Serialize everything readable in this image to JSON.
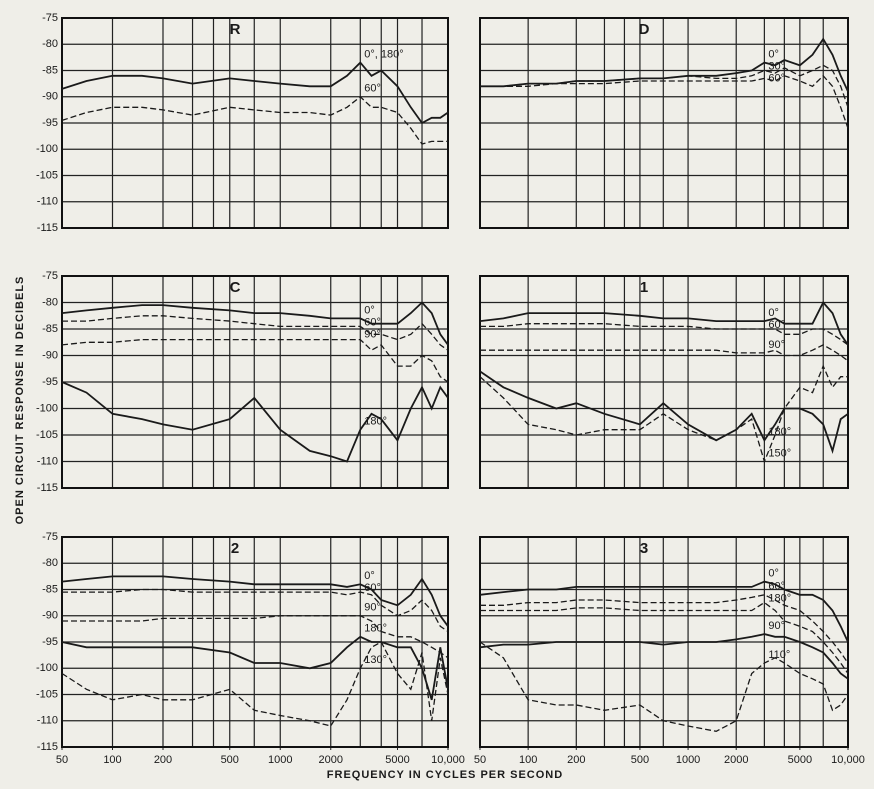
{
  "ylabel": "OPEN CIRCUIT RESPONSE IN DECIBELS",
  "xlabel": "FREQUENCY IN CYCLES PER SECOND",
  "chart_data": [
    {
      "type": "line",
      "title": "R",
      "xscale": "log",
      "xlim": [
        50,
        10000
      ],
      "ylim": [
        -115,
        -75
      ],
      "x": [
        50,
        70,
        100,
        150,
        200,
        300,
        500,
        700,
        1000,
        1500,
        2000,
        2500,
        3000,
        3500,
        4000,
        5000,
        6000,
        7000,
        8000,
        9000,
        10000
      ],
      "xgrid": [
        50,
        100,
        200,
        300,
        400,
        500,
        700,
        1000,
        2000,
        3000,
        4000,
        5000,
        7000,
        10000
      ],
      "yticks": [
        -75,
        -80,
        -85,
        -90,
        -95,
        -100,
        -105,
        -110,
        -115
      ],
      "series": [
        {
          "name": "0°, 180°",
          "color": "#1a1a1a",
          "dash": false,
          "values": [
            -88.5,
            -87,
            -86,
            -86,
            -86.5,
            -87.5,
            -86.5,
            -87,
            -87.5,
            -88,
            -88,
            -86,
            -83.5,
            -86,
            -85,
            -88,
            -92,
            -95,
            -94,
            -94,
            -93
          ]
        },
        {
          "name": "60°",
          "color": "#1a1a1a",
          "dash": true,
          "values": [
            -94.5,
            -93,
            -92,
            -92,
            -92.5,
            -93.5,
            -92,
            -92.5,
            -93,
            -93,
            -93.5,
            -92,
            -90,
            -92,
            -92,
            -93,
            -96,
            -99,
            -98.5,
            -98.5,
            -98.5
          ]
        }
      ]
    },
    {
      "type": "line",
      "title": "D",
      "xscale": "log",
      "xlim": [
        50,
        10000
      ],
      "ylim": [
        -115,
        -75
      ],
      "x": [
        50,
        70,
        100,
        150,
        200,
        300,
        500,
        700,
        1000,
        1500,
        2000,
        2500,
        3000,
        3500,
        4000,
        5000,
        6000,
        7000,
        8000,
        9000,
        10000
      ],
      "xgrid": [
        50,
        100,
        200,
        300,
        400,
        500,
        700,
        1000,
        2000,
        3000,
        4000,
        5000,
        7000,
        10000
      ],
      "ygrid": [
        -75,
        -80,
        -85,
        -90,
        -95,
        -100,
        -105,
        -110,
        -115
      ],
      "series": [
        {
          "name": "0°",
          "color": "#1a1a1a",
          "dash": false,
          "values": [
            -88,
            -88,
            -87.5,
            -87.5,
            -87,
            -87,
            -86.5,
            -86.5,
            -86,
            -86,
            -85.5,
            -85,
            -83.5,
            -84,
            -83,
            -84,
            -82,
            -79,
            -82,
            -86,
            -89
          ]
        },
        {
          "name": "30°",
          "color": "#1a1a1a",
          "dash": true,
          "values": [
            -88,
            -88,
            -87.5,
            -87.5,
            -87,
            -87,
            -86.5,
            -86.5,
            -86,
            -86.5,
            -86.5,
            -86,
            -85,
            -85.5,
            -84.5,
            -86,
            -85,
            -84,
            -85,
            -88,
            -92
          ]
        },
        {
          "name": "60°",
          "color": "#1a1a1a",
          "dash": true,
          "values": [
            -88,
            -88,
            -88,
            -87.5,
            -87.5,
            -87.5,
            -87,
            -87,
            -87,
            -87,
            -87,
            -87,
            -86.5,
            -87,
            -86,
            -87,
            -88,
            -86,
            -88,
            -92,
            -96
          ]
        }
      ]
    },
    {
      "type": "line",
      "title": "C",
      "xscale": "log",
      "xlim": [
        50,
        10000
      ],
      "ylim": [
        -115,
        -75
      ],
      "x": [
        50,
        70,
        100,
        150,
        200,
        300,
        500,
        700,
        1000,
        1500,
        2000,
        2500,
        3000,
        3500,
        4000,
        5000,
        6000,
        7000,
        8000,
        9000,
        10000
      ],
      "xgrid": [
        50,
        100,
        200,
        300,
        400,
        500,
        700,
        1000,
        2000,
        3000,
        4000,
        5000,
        7000,
        10000
      ],
      "yticks": [
        -75,
        -80,
        -85,
        -90,
        -95,
        -100,
        -105,
        -110,
        -115
      ],
      "series": [
        {
          "name": "0°",
          "color": "#1a1a1a",
          "dash": false,
          "values": [
            -82,
            -81.5,
            -81,
            -80.5,
            -80.5,
            -81,
            -81.5,
            -82,
            -82,
            -82.5,
            -83,
            -83,
            -83,
            -84,
            -84,
            -84,
            -82,
            -80,
            -82,
            -86,
            -88
          ]
        },
        {
          "name": "60°",
          "color": "#1a1a1a",
          "dash": true,
          "values": [
            -83.5,
            -83.5,
            -83,
            -82.5,
            -82.5,
            -83,
            -83.5,
            -84,
            -84.5,
            -84.5,
            -84.5,
            -84.5,
            -84.5,
            -86,
            -86,
            -87,
            -86,
            -84,
            -86,
            -88,
            -89
          ]
        },
        {
          "name": "90°",
          "color": "#1a1a1a",
          "dash": true,
          "values": [
            -88,
            -87.5,
            -87.5,
            -87,
            -87,
            -87,
            -87,
            -87,
            -87,
            -87,
            -87,
            -87,
            -87,
            -89,
            -88,
            -92,
            -92,
            -90,
            -91,
            -94,
            -95
          ]
        },
        {
          "name": "180°",
          "color": "#1a1a1a",
          "dash": false,
          "values": [
            -95,
            -97,
            -101,
            -102,
            -103,
            -104,
            -102,
            -98,
            -104,
            -108,
            -109,
            -110,
            -104,
            -101,
            -102,
            -106,
            -100,
            -96,
            -100,
            -96,
            -98
          ]
        }
      ]
    },
    {
      "type": "line",
      "title": "1",
      "xscale": "log",
      "xlim": [
        50,
        10000
      ],
      "ylim": [
        -115,
        -75
      ],
      "x": [
        50,
        70,
        100,
        150,
        200,
        300,
        500,
        700,
        1000,
        1500,
        2000,
        2500,
        3000,
        3500,
        4000,
        5000,
        6000,
        7000,
        8000,
        9000,
        10000
      ],
      "xgrid": [
        50,
        100,
        200,
        300,
        400,
        500,
        700,
        1000,
        2000,
        3000,
        4000,
        5000,
        7000,
        10000
      ],
      "ygrid": [
        -75,
        -80,
        -85,
        -90,
        -95,
        -100,
        -105,
        -110,
        -115
      ],
      "series": [
        {
          "name": "0°",
          "color": "#1a1a1a",
          "dash": false,
          "values": [
            -83.5,
            -83,
            -82,
            -82,
            -82,
            -82,
            -82.5,
            -83,
            -83,
            -83.5,
            -83.5,
            -83.5,
            -83.5,
            -83,
            -84,
            -84,
            -84,
            -80,
            -82,
            -86,
            -88
          ]
        },
        {
          "name": "60°",
          "color": "#1a1a1a",
          "dash": true,
          "values": [
            -84.5,
            -84.5,
            -84,
            -84,
            -84,
            -84,
            -84.5,
            -84.5,
            -84.5,
            -85,
            -85,
            -85,
            -85,
            -85,
            -86,
            -86,
            -85,
            -85,
            -86,
            -87,
            -88
          ]
        },
        {
          "name": "90°",
          "color": "#1a1a1a",
          "dash": true,
          "values": [
            -89,
            -89,
            -89,
            -89,
            -89,
            -89,
            -89,
            -89,
            -89,
            -89,
            -89.5,
            -89.5,
            -89.5,
            -89,
            -90,
            -90,
            -89,
            -88,
            -89,
            -90,
            -91
          ]
        },
        {
          "name": "150°",
          "color": "#1a1a1a",
          "dash": true,
          "values": [
            -94,
            -98,
            -103,
            -104,
            -105,
            -104,
            -104,
            -101,
            -104,
            -106,
            -104,
            -102,
            -110,
            -105,
            -100,
            -96,
            -97,
            -92,
            -96,
            -94,
            -94
          ]
        },
        {
          "name": "180°",
          "color": "#1a1a1a",
          "dash": false,
          "values": [
            -93,
            -96,
            -98,
            -100,
            -99,
            -101,
            -103,
            -99,
            -103,
            -106,
            -104,
            -101,
            -106,
            -103,
            -100,
            -100,
            -101,
            -103,
            -108,
            -102,
            -101
          ]
        }
      ]
    },
    {
      "type": "line",
      "title": "2",
      "xscale": "log",
      "xlim": [
        50,
        10000
      ],
      "ylim": [
        -115,
        -75
      ],
      "x": [
        50,
        70,
        100,
        150,
        200,
        300,
        500,
        700,
        1000,
        1500,
        2000,
        2500,
        3000,
        3500,
        4000,
        5000,
        6000,
        7000,
        8000,
        9000,
        10000
      ],
      "xgrid": [
        50,
        100,
        200,
        300,
        400,
        500,
        700,
        1000,
        2000,
        3000,
        4000,
        5000,
        7000,
        10000
      ],
      "xticks": [
        50,
        100,
        200,
        500,
        1000,
        2000,
        5000,
        {
          "value": 10000,
          "label": "10,000"
        }
      ],
      "yticks": [
        -75,
        -80,
        -85,
        -90,
        -95,
        -100,
        -105,
        -110,
        -115
      ],
      "series": [
        {
          "name": "0°",
          "color": "#1a1a1a",
          "dash": false,
          "values": [
            -83.5,
            -83,
            -82.5,
            -82.5,
            -82.5,
            -83,
            -83.5,
            -84,
            -84,
            -84,
            -84,
            -84.5,
            -84,
            -85,
            -87,
            -88,
            -86,
            -83,
            -86,
            -90,
            -92
          ]
        },
        {
          "name": "60°",
          "color": "#1a1a1a",
          "dash": true,
          "values": [
            -85.5,
            -85.5,
            -85.5,
            -85,
            -85,
            -85.5,
            -85.5,
            -85.5,
            -85.5,
            -85.5,
            -85.5,
            -86,
            -85.5,
            -86,
            -88,
            -90,
            -89,
            -87,
            -89,
            -92,
            -93
          ]
        },
        {
          "name": "90°",
          "color": "#1a1a1a",
          "dash": true,
          "values": [
            -91,
            -91,
            -91,
            -91,
            -90.5,
            -90.5,
            -90.5,
            -90.5,
            -90,
            -90,
            -90,
            -90,
            -90,
            -91,
            -93,
            -94,
            -94,
            -95,
            -96,
            -97,
            -98
          ]
        },
        {
          "name": "180°",
          "color": "#1a1a1a",
          "dash": false,
          "values": [
            -95,
            -96,
            -96,
            -96,
            -96,
            -96,
            -97,
            -99,
            -99,
            -100,
            -99,
            -96,
            -94,
            -95,
            -95,
            -96,
            -96,
            -100,
            -106,
            -96,
            -104
          ]
        },
        {
          "name": "130°",
          "color": "#1a1a1a",
          "dash": true,
          "values": [
            -101,
            -104,
            -106,
            -105,
            -106,
            -106,
            -104,
            -108,
            -109,
            -110,
            -111,
            -106,
            -100,
            -96,
            -95,
            -101,
            -104,
            -97,
            -110,
            -98,
            -105
          ]
        }
      ]
    },
    {
      "type": "line",
      "title": "3",
      "xscale": "log",
      "xlim": [
        50,
        10000
      ],
      "ylim": [
        -115,
        -75
      ],
      "x": [
        50,
        70,
        100,
        150,
        200,
        300,
        500,
        700,
        1000,
        1500,
        2000,
        2500,
        3000,
        3500,
        4000,
        5000,
        6000,
        7000,
        8000,
        9000,
        10000
      ],
      "xgrid": [
        50,
        100,
        200,
        300,
        400,
        500,
        700,
        1000,
        2000,
        3000,
        4000,
        5000,
        7000,
        10000
      ],
      "xticks": [
        50,
        100,
        200,
        500,
        1000,
        2000,
        5000,
        {
          "value": 10000,
          "label": "10,000"
        }
      ],
      "ygrid": [
        -75,
        -80,
        -85,
        -90,
        -95,
        -100,
        -105,
        -110,
        -115
      ],
      "series": [
        {
          "name": "0°",
          "color": "#1a1a1a",
          "dash": false,
          "values": [
            -86,
            -85.5,
            -85,
            -85,
            -84.5,
            -84.5,
            -84.5,
            -84.5,
            -84.5,
            -84.5,
            -84.5,
            -84.5,
            -83.5,
            -84,
            -85,
            -86,
            -86,
            -87,
            -89,
            -92,
            -95
          ]
        },
        {
          "name": "60°",
          "color": "#1a1a1a",
          "dash": true,
          "values": [
            -88,
            -88,
            -87.5,
            -87.5,
            -87,
            -87,
            -87.5,
            -87.5,
            -87.5,
            -87.5,
            -87,
            -86.5,
            -86,
            -87,
            -88,
            -89,
            -91,
            -93,
            -95,
            -97,
            -99
          ]
        },
        {
          "name": "180°",
          "color": "#1a1a1a",
          "dash": true,
          "values": [
            -89,
            -89,
            -89,
            -89,
            -88.5,
            -88.5,
            -89,
            -89,
            -89,
            -89,
            -89,
            -89,
            -87.5,
            -89,
            -91,
            -92,
            -93,
            -95,
            -97,
            -99,
            -101
          ]
        },
        {
          "name": "90°",
          "color": "#1a1a1a",
          "dash": false,
          "values": [
            -96,
            -95.5,
            -95.5,
            -95,
            -95,
            -95,
            -95,
            -95.5,
            -95,
            -95,
            -94.5,
            -94,
            -93.5,
            -94,
            -94,
            -95,
            -96,
            -97,
            -99,
            -101,
            -102
          ]
        },
        {
          "name": "110°",
          "color": "#1a1a1a",
          "dash": true,
          "values": [
            -95,
            -98,
            -106,
            -107,
            -107,
            -108,
            -107,
            -110,
            -111,
            -112,
            -110,
            -101,
            -99,
            -98,
            -99,
            -101,
            -102,
            -103,
            -108,
            -107,
            -105
          ]
        }
      ]
    }
  ]
}
